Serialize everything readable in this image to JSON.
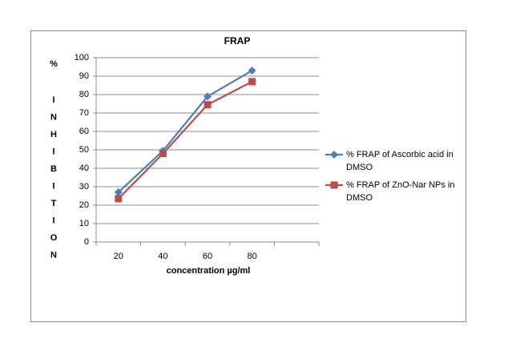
{
  "chart_data": {
    "type": "line",
    "title": "FRAP",
    "y_label_symbol": "%",
    "y_label": "INHIBITION",
    "x_label": "concentration µg/ml",
    "categories": [
      "20",
      "40",
      "60",
      "80",
      null
    ],
    "series": [
      {
        "name": "% FRAP of Ascorbic acid in DMSO",
        "color": "#4a7ebb",
        "marker": "diamond",
        "values": [
          27,
          49.5,
          79,
          93,
          null
        ]
      },
      {
        "name": "% FRAP of ZnO-Nar NPs in DMSO",
        "color": "#be4b48",
        "marker": "square",
        "values": [
          23.5,
          48,
          74.5,
          87,
          null
        ]
      }
    ],
    "ylim": [
      0,
      100
    ],
    "yticks": [
      0,
      10,
      20,
      30,
      40,
      50,
      60,
      70,
      80,
      90,
      100
    ],
    "grid": true,
    "legend": "right"
  }
}
